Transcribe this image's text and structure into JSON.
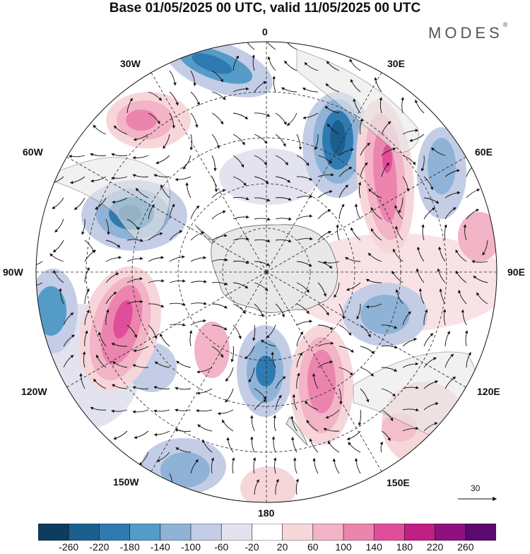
{
  "title": "Base 01/05/2025 00 UTC, valid 11/05/2025 00 UTC",
  "brand": "MODES",
  "brand_mark": "®",
  "longitude_labels": {
    "top": "0",
    "top_right": "30E",
    "right_upper": "60E",
    "right": "90E",
    "right_lower": "120E",
    "bottom_right": "150E",
    "bottom": "180",
    "bottom_left": "150W",
    "left_lower": "120W",
    "left": "90W",
    "left_upper": "60W",
    "top_left": "30W"
  },
  "reference_vector_label": "30",
  "colorbar": {
    "tick_labels": [
      "-260",
      "-220",
      "-180",
      "-140",
      "-100",
      "-60",
      "-20",
      "20",
      "60",
      "100",
      "140",
      "180",
      "220",
      "260"
    ],
    "colors": [
      "#0c3c5e",
      "#1b5f8f",
      "#2f7bb1",
      "#559bc8",
      "#8eb3d6",
      "#c4cde6",
      "#e3e3f0",
      "#ffffff",
      "#f7d6da",
      "#f2b4c6",
      "#ec85ae",
      "#e04e99",
      "#c01f84",
      "#8e117f",
      "#5a0a6e"
    ]
  },
  "colors": {
    "land": "#e8e8e8",
    "coast": "#666666",
    "grid": "#222222"
  }
}
